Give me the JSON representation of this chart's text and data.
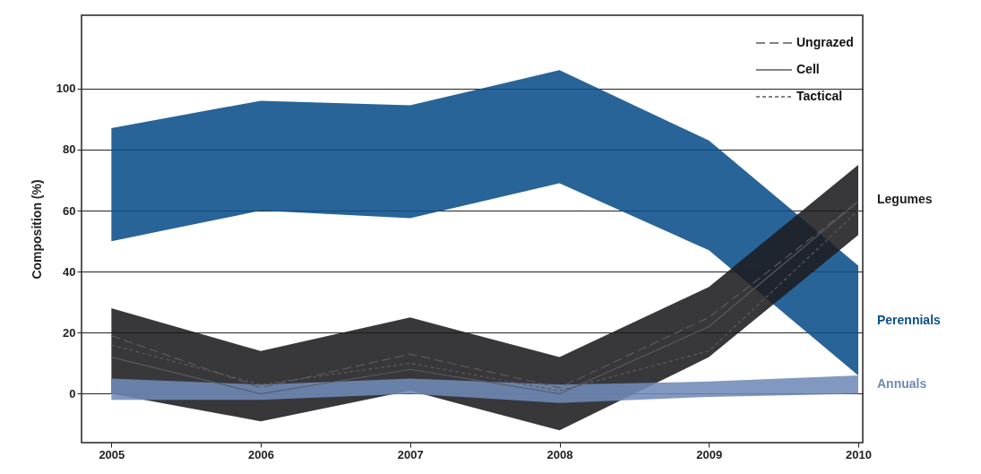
{
  "chart_data": {
    "type": "line",
    "ylabel": "Composition (%)",
    "x": [
      2005,
      2006,
      2007,
      2008,
      2009,
      2010
    ],
    "xlim": [
      2004.8,
      2010.03
    ],
    "xticks": [
      2005,
      2006,
      2007,
      2008,
      2009,
      2010
    ],
    "ylim": [
      -16,
      124
    ],
    "yticks": [
      0,
      20,
      40,
      60,
      80,
      100
    ],
    "grid": "y",
    "legend": "top right",
    "marker": "none",
    "series": [
      {
        "name": "Perennials",
        "type": "area",
        "color": "#0a4f8a",
        "values": [
          null,
          null,
          null,
          null,
          null,
          null
        ],
        "lower": [
          50,
          60,
          57.5,
          69,
          47,
          6
        ],
        "upper": [
          87,
          96,
          94.5,
          106,
          83,
          42
        ]
      },
      {
        "name": "Legumes",
        "type": "area",
        "color": "#1c1c20",
        "values": [
          null,
          null,
          null,
          null,
          null,
          null
        ],
        "lower": [
          0,
          -9,
          1,
          -12,
          12,
          52
        ],
        "upper": [
          28,
          14,
          25,
          12,
          35,
          75
        ]
      },
      {
        "name": "Annuals",
        "type": "area",
        "color": "#6f8ab8",
        "values": [
          null,
          null,
          null,
          null,
          null,
          null
        ],
        "lower": [
          -2,
          -2,
          0,
          -3,
          -1,
          0
        ],
        "upper": [
          5,
          3,
          5,
          3,
          4,
          6
        ]
      },
      {
        "name": "Ungrazed",
        "color": "#5a5a60",
        "line_style": "dashed",
        "values": [
          19,
          2,
          13,
          2,
          25,
          63
        ]
      },
      {
        "name": "Cell",
        "color": "#5a5a60",
        "line_style": "solid",
        "values": [
          12,
          0,
          8,
          0,
          22,
          63
        ]
      },
      {
        "name": "Tactical",
        "color": "#5a5a60",
        "line_style": "dotted",
        "values": [
          16,
          3,
          10,
          1,
          14,
          60
        ]
      }
    ]
  }
}
